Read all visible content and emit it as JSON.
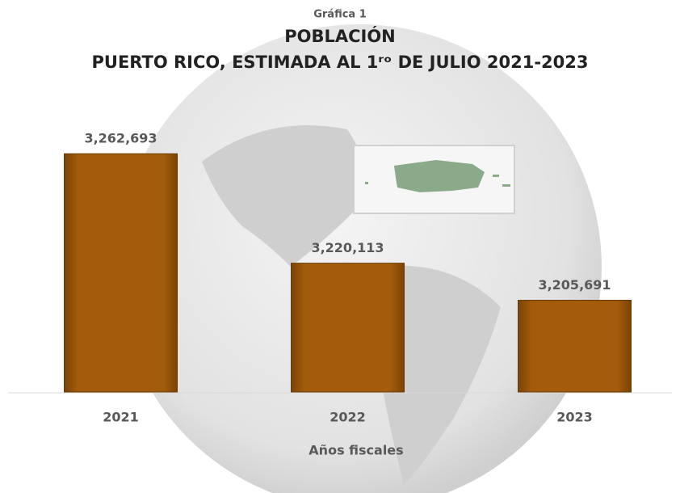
{
  "chart_data": {
    "type": "bar",
    "subtitle": "Gráfica 1",
    "title": "POBLACIÓN",
    "title_line2": "PUERTO RICO, ESTIMADA AL 1ʳᵒ DE JULIO 2021-2023",
    "x_label": "Años fiscales",
    "categories": [
      "2021",
      "2022",
      "2023"
    ],
    "values": [
      3262693,
      3220113,
      3205691
    ],
    "value_labels": [
      "3,262,693",
      "3,220,113",
      "3,205,691"
    ],
    "color": "#a35c0b",
    "ylim": [
      3170000,
      3270000
    ]
  }
}
